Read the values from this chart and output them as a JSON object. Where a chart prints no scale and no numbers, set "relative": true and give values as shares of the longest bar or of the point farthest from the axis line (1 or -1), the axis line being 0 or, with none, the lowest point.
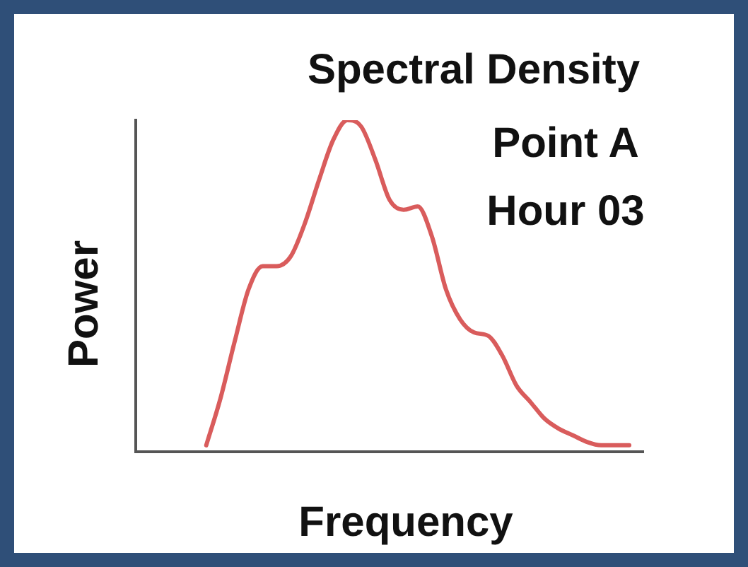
{
  "chart_data": {
    "type": "line",
    "title": "Spectral Density",
    "subtitle": "Point A\nHour 03",
    "xlabel": "Frequency",
    "ylabel": "Power",
    "relative": true,
    "grid": false,
    "legend": false,
    "marker": "none",
    "line_style": "solid",
    "categories": [
      null,
      null,
      null,
      null,
      null,
      null,
      null,
      null,
      null,
      null,
      null,
      null,
      null,
      null,
      null,
      null,
      null,
      null,
      null,
      null,
      null,
      null,
      null,
      null,
      null,
      null,
      null,
      null,
      null,
      null,
      null,
      null,
      null,
      null,
      null,
      null,
      null
    ],
    "series": [
      {
        "color": "#d95c5c",
        "values": [
          null,
          null,
          null,
          null,
          null,
          0.02,
          0.16,
          0.33,
          0.49,
          0.56,
          0.56,
          0.59,
          0.69,
          0.82,
          0.94,
          1.0,
          0.98,
          0.88,
          0.76,
          0.73,
          0.74,
          0.65,
          0.49,
          0.4,
          0.36,
          0.35,
          0.29,
          0.2,
          0.15,
          0.1,
          0.07,
          0.05,
          0.03,
          0.02,
          0.02,
          0.02,
          null
        ]
      }
    ]
  }
}
